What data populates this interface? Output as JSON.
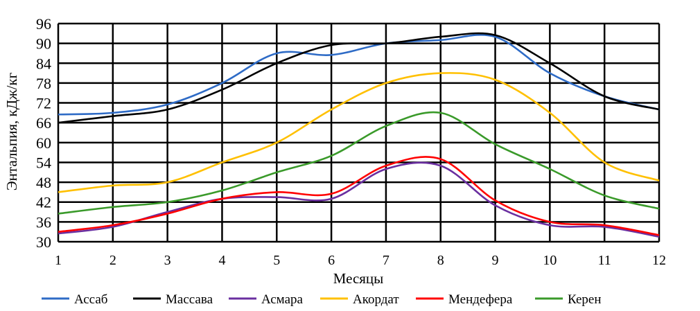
{
  "chart_data": {
    "type": "line",
    "title": "",
    "xlabel": "Месяцы",
    "ylabel": "Энтальпия, кДж/кг",
    "xlim": [
      1,
      12
    ],
    "ylim": [
      30,
      96
    ],
    "grid": true,
    "legend_position": "bottom",
    "x": [
      1,
      2,
      3,
      4,
      5,
      6,
      7,
      8,
      9,
      10,
      11,
      12
    ],
    "x_ticks": [
      "1",
      "2",
      "3",
      "4",
      "5",
      "6",
      "7",
      "8",
      "9",
      "10",
      "11",
      "12"
    ],
    "y_ticks": [
      "30",
      "36",
      "42",
      "48",
      "54",
      "60",
      "66",
      "72",
      "78",
      "84",
      "90",
      "96"
    ],
    "series": [
      {
        "name": "Ассаб",
        "color": "#2e6bc6",
        "values": [
          68.5,
          69,
          71.5,
          78,
          87,
          86.5,
          90,
          91,
          92,
          81,
          74,
          70
        ]
      },
      {
        "name": "Массава",
        "color": "#000000",
        "values": [
          66,
          68,
          70,
          76,
          84,
          89.5,
          90,
          92,
          92.5,
          84,
          74,
          70
        ]
      },
      {
        "name": "Асмара",
        "color": "#6a2fa0",
        "values": [
          32.5,
          34.5,
          39,
          43,
          43.5,
          43,
          52,
          53,
          41,
          35,
          34.5,
          31.5
        ]
      },
      {
        "name": "Акордат",
        "color": "#ffc000",
        "values": [
          45,
          47,
          48,
          54,
          60,
          70,
          78,
          81,
          79,
          69,
          54,
          48.5
        ]
      },
      {
        "name": "Мендефера",
        "color": "#ff0000",
        "values": [
          33,
          35,
          38.5,
          43,
          45,
          44.5,
          53,
          55,
          42.5,
          36,
          35,
          32
        ]
      },
      {
        "name": "Керен",
        "color": "#3a9a2a",
        "values": [
          38.5,
          40.5,
          42,
          45.5,
          51,
          56,
          65,
          69,
          59.5,
          52,
          44,
          40
        ]
      }
    ]
  }
}
